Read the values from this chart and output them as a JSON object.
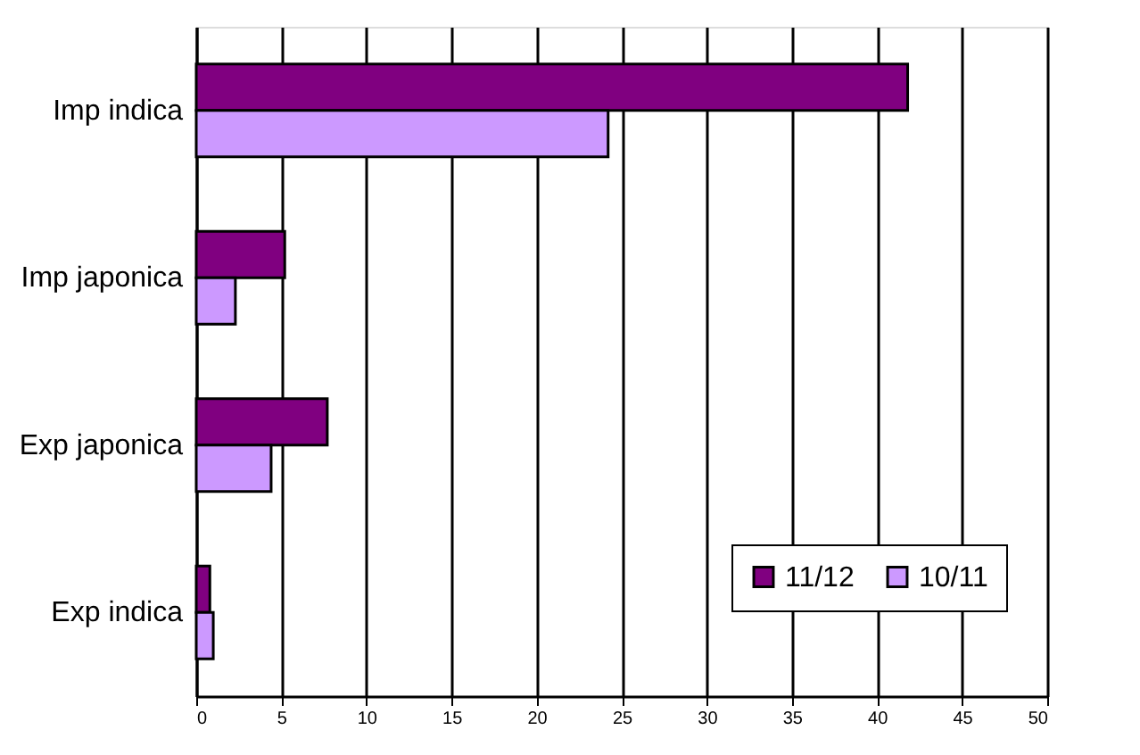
{
  "chart_data": {
    "type": "bar",
    "orientation": "horizontal",
    "categories": [
      "Imp indica",
      "Imp japonica",
      "Exp japonica",
      "Exp indica"
    ],
    "series": [
      {
        "name": "11/12",
        "color": "#800080",
        "values": [
          41.8,
          5.2,
          7.7,
          0.8
        ]
      },
      {
        "name": "10/11",
        "color": "#cc99ff",
        "values": [
          24.2,
          2.3,
          4.4,
          1.0
        ]
      }
    ],
    "xlim": [
      0,
      50
    ],
    "xticks": [
      0,
      5,
      10,
      15,
      20,
      25,
      30,
      35,
      40,
      45,
      50
    ],
    "grid": "x",
    "legend": "bottom right"
  }
}
